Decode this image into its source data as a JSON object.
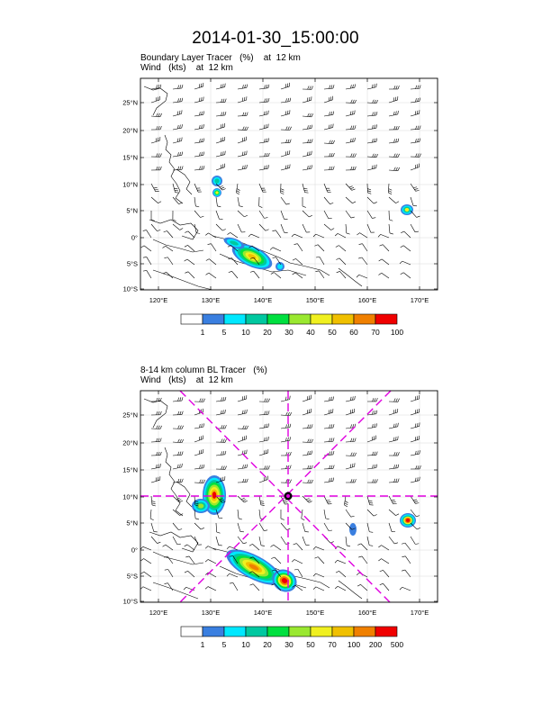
{
  "title": "2014-01-30_15:00:00",
  "panel1": {
    "line1_label": "Boundary Layer Tracer",
    "line1_unit": "(%)",
    "line1_level": "at  12 km",
    "line2_label": "Wind",
    "line2_unit": "(kts)",
    "line2_level": "at  12 km",
    "colorbar_labels": [
      "1",
      "5",
      "10",
      "20",
      "30",
      "40",
      "50",
      "60",
      "70",
      "100"
    ]
  },
  "panel2": {
    "line1_label": "8-14 km column BL Tracer",
    "line1_unit": "(%)",
    "line2_label": "Wind",
    "line2_unit": "(kts)",
    "line2_level": "at  12 km",
    "colorbar_labels": [
      "1",
      "5",
      "10",
      "20",
      "30",
      "50",
      "70",
      "100",
      "200",
      "500"
    ]
  },
  "axes": {
    "lat_labels": [
      "25°N",
      "20°N",
      "15°N",
      "10°N",
      "5°N",
      "0°",
      "5°S",
      "10°S"
    ],
    "lon_labels": [
      "120°E",
      "130°E",
      "140°E",
      "150°E",
      "160°E",
      "170°E"
    ]
  },
  "colors": {
    "colorbar": [
      "#ffffff",
      "#3a7fe0",
      "#00e8ff",
      "#00c8a0",
      "#00e040",
      "#9ae830",
      "#f0f020",
      "#f0c000",
      "#f08000",
      "#f00000"
    ],
    "crosshair": "#e000e0"
  }
}
